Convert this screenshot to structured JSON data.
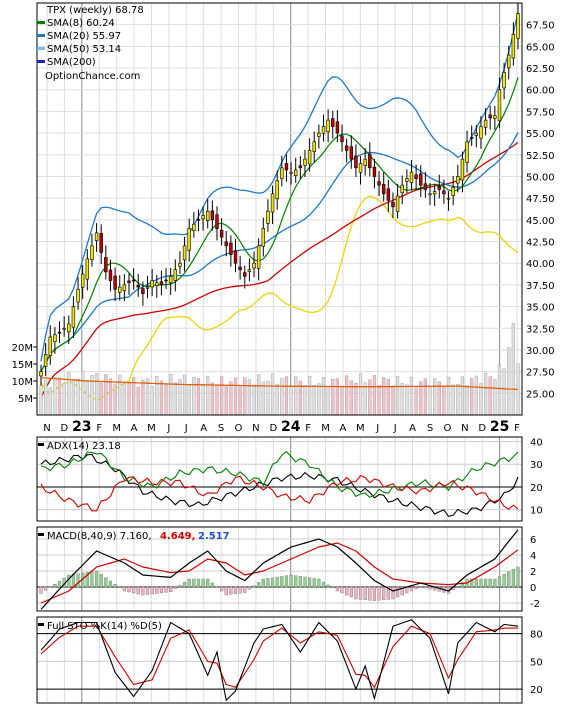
{
  "colors": {
    "up_candle": "#f2e600",
    "down_candle": "#c00000",
    "sma8": "#008000",
    "sma20": "#1e78c8",
    "sma50": "#7db9e6",
    "sma200": "#2020c0",
    "red_line": "#cc0000",
    "bollinger_upper": "#1e78c8",
    "bollinger_lower": "#e6d800",
    "volume_up": "#e0e0e0",
    "volume_down": "#f5c0c8",
    "volume_avg": "#e06010",
    "adx": "#000000",
    "plus_di": "#008000",
    "minus_di": "#cc0000",
    "macd_line": "#000000",
    "signal_line": "#cc0000",
    "hist_pos": "#90d090",
    "hist_neg": "#f0b0c0",
    "stoch_k": "#000000",
    "stoch_d": "#cc0000"
  },
  "legend": {
    "title": "TPX (weekly) 68.78",
    "sma8": "SMA(8) 60.24",
    "sma20": "SMA(20) 55.97",
    "sma50": "SMA(50) 53.14",
    "sma200": "SMA(200)",
    "site": "OptionChance.com"
  },
  "x_axis": {
    "months": [
      "N",
      "D",
      "23",
      "F",
      "M",
      "A",
      "M",
      "J",
      "J",
      "A",
      "S",
      "O",
      "N",
      "D",
      "24",
      "F",
      "M",
      "A",
      "M",
      "J",
      "J",
      "A",
      "S",
      "O",
      "N",
      "D",
      "25",
      "F"
    ],
    "year_labels": [
      "23",
      "24",
      "25"
    ]
  },
  "chart_data": [
    {
      "type": "candlestick",
      "title": "TPX (weekly) 68.78",
      "ylim": [
        22.5,
        70
      ],
      "y_ticks": [
        "25.00",
        "27.50",
        "30.00",
        "32.50",
        "35.00",
        "37.50",
        "40.00",
        "42.50",
        "45.00",
        "47.50",
        "50.00",
        "52.50",
        "55.00",
        "57.50",
        "60.00",
        "62.50",
        "65.00",
        "67.50"
      ],
      "close_anchors": [
        [
          0,
          27.5
        ],
        [
          2,
          31.5
        ],
        [
          4,
          32
        ],
        [
          6,
          33
        ],
        [
          8,
          37
        ],
        [
          10,
          40.5
        ],
        [
          12,
          43.5
        ],
        [
          14,
          39
        ],
        [
          16,
          37
        ],
        [
          18,
          37.5
        ],
        [
          20,
          38
        ],
        [
          22,
          36.5
        ],
        [
          24,
          38
        ],
        [
          26,
          37.5
        ],
        [
          28,
          38.5
        ],
        [
          30,
          40
        ],
        [
          32,
          44
        ],
        [
          34,
          45
        ],
        [
          36,
          46
        ],
        [
          38,
          44
        ],
        [
          40,
          42
        ],
        [
          42,
          40
        ],
        [
          44,
          38.5
        ],
        [
          46,
          40
        ],
        [
          48,
          44
        ],
        [
          50,
          48
        ],
        [
          52,
          51
        ],
        [
          54,
          50.5
        ],
        [
          56,
          51
        ],
        [
          58,
          53
        ],
        [
          60,
          55
        ],
        [
          62,
          56.5
        ],
        [
          64,
          55
        ],
        [
          66,
          53
        ],
        [
          68,
          51
        ],
        [
          70,
          52
        ],
        [
          72,
          50
        ],
        [
          74,
          48
        ],
        [
          76,
          46.5
        ],
        [
          78,
          49
        ],
        [
          80,
          50.5
        ],
        [
          82,
          49
        ],
        [
          84,
          48
        ],
        [
          86,
          48.5
        ],
        [
          88,
          47.5
        ],
        [
          90,
          50
        ],
        [
          92,
          54
        ],
        [
          94,
          55
        ],
        [
          96,
          56.5
        ],
        [
          98,
          57
        ],
        [
          99,
          60
        ],
        [
          101,
          64
        ],
        [
          103,
          68.78
        ]
      ],
      "volume_ylim": [
        0,
        25
      ],
      "volume_ticks": [
        "5M",
        "10M",
        "15M",
        "20M"
      ],
      "volume_anchors": [
        [
          0,
          7
        ],
        [
          4,
          9
        ],
        [
          10,
          10
        ],
        [
          20,
          8
        ],
        [
          30,
          9
        ],
        [
          40,
          8
        ],
        [
          50,
          9
        ],
        [
          60,
          8
        ],
        [
          70,
          9
        ],
        [
          80,
          8
        ],
        [
          90,
          8
        ],
        [
          98,
          10
        ],
        [
          100,
          13
        ],
        [
          102,
          24
        ],
        [
          103,
          15
        ]
      ],
      "volume_avg_anchors": [
        [
          0,
          11
        ],
        [
          10,
          10
        ],
        [
          30,
          9
        ],
        [
          50,
          8.5
        ],
        [
          70,
          8.3
        ],
        [
          90,
          8.5
        ],
        [
          103,
          7.5
        ]
      ],
      "series": [
        {
          "name": "SMA(8) 60.24"
        },
        {
          "name": "SMA(20) 55.97"
        },
        {
          "name": "SMA(50) 53.14"
        },
        {
          "name": "SMA(200)"
        }
      ]
    },
    {
      "type": "line",
      "title": "ADX(14) 23.18",
      "ylim": [
        5,
        42
      ],
      "y_ticks": [
        "10",
        "20",
        "30",
        "40"
      ],
      "series": [
        {
          "name": "ADX(14) 23.18",
          "anchors": [
            [
              0,
              30
            ],
            [
              10,
              34
            ],
            [
              16,
              28
            ],
            [
              22,
              18
            ],
            [
              28,
              14
            ],
            [
              34,
              12
            ],
            [
              40,
              16
            ],
            [
              46,
              20
            ],
            [
              52,
              24
            ],
            [
              58,
              25
            ],
            [
              64,
              23
            ],
            [
              70,
              18
            ],
            [
              76,
              14
            ],
            [
              82,
              11
            ],
            [
              88,
              8
            ],
            [
              94,
              10
            ],
            [
              100,
              16
            ],
            [
              103,
              23.18
            ]
          ]
        },
        {
          "anchors": [
            [
              0,
              28
            ],
            [
              6,
              30
            ],
            [
              12,
              36
            ],
            [
              18,
              24
            ],
            [
              24,
              20
            ],
            [
              30,
              26
            ],
            [
              36,
              28
            ],
            [
              42,
              26
            ],
            [
              48,
              22
            ],
            [
              52,
              35
            ],
            [
              58,
              30
            ],
            [
              64,
              20
            ],
            [
              70,
              16
            ],
            [
              76,
              19
            ],
            [
              82,
              22
            ],
            [
              88,
              20
            ],
            [
              94,
              28
            ],
            [
              100,
              32
            ],
            [
              103,
              34
            ]
          ]
        },
        {
          "anchors": [
            [
              0,
              20
            ],
            [
              6,
              14
            ],
            [
              12,
              10
            ],
            [
              18,
              24
            ],
            [
              24,
              22
            ],
            [
              30,
              22
            ],
            [
              36,
              16
            ],
            [
              42,
              24
            ],
            [
              48,
              20
            ],
            [
              52,
              16
            ],
            [
              58,
              14
            ],
            [
              64,
              22
            ],
            [
              70,
              24
            ],
            [
              76,
              20
            ],
            [
              82,
              18
            ],
            [
              88,
              22
            ],
            [
              94,
              18
            ],
            [
              100,
              12
            ],
            [
              103,
              10
            ]
          ]
        }
      ],
      "reference": 20
    },
    {
      "type": "line",
      "title": "MACD(8,40,9) 7.160,",
      "values_printed": [
        "4.649,",
        "2.517"
      ],
      "ylim": [
        -3,
        7.5
      ],
      "y_ticks": [
        "-2",
        "0",
        "2",
        "4",
        "6"
      ],
      "series": [
        {
          "name": "MACD(8,40,9) 7.160,",
          "anchors": [
            [
              0,
              -2.8
            ],
            [
              6,
              1
            ],
            [
              12,
              4.5
            ],
            [
              18,
              3
            ],
            [
              22,
              1.5
            ],
            [
              28,
              1.2
            ],
            [
              32,
              3
            ],
            [
              36,
              4.5
            ],
            [
              40,
              2
            ],
            [
              44,
              0.8
            ],
            [
              48,
              3
            ],
            [
              54,
              5
            ],
            [
              60,
              6
            ],
            [
              64,
              5
            ],
            [
              68,
              3
            ],
            [
              72,
              0.8
            ],
            [
              76,
              -0.5
            ],
            [
              82,
              0.5
            ],
            [
              88,
              -0.5
            ],
            [
              92,
              1.5
            ],
            [
              98,
              3.5
            ],
            [
              103,
              7.16
            ]
          ]
        },
        {
          "name": "4.649,",
          "anchors": [
            [
              0,
              -2
            ],
            [
              6,
              -0.5
            ],
            [
              12,
              2.5
            ],
            [
              18,
              3.5
            ],
            [
              22,
              2.5
            ],
            [
              28,
              1.8
            ],
            [
              32,
              2
            ],
            [
              36,
              3.5
            ],
            [
              40,
              3
            ],
            [
              44,
              1.5
            ],
            [
              48,
              2
            ],
            [
              54,
              3.5
            ],
            [
              60,
              5
            ],
            [
              64,
              5.5
            ],
            [
              68,
              4.5
            ],
            [
              72,
              2.5
            ],
            [
              76,
              1
            ],
            [
              82,
              0.5
            ],
            [
              88,
              0.3
            ],
            [
              92,
              0.5
            ],
            [
              98,
              2.5
            ],
            [
              103,
              4.649
            ]
          ]
        },
        {
          "name": "2.517"
        }
      ]
    },
    {
      "type": "line",
      "title": "Full STO %K(14) %D(5)",
      "ylim": [
        5,
        98
      ],
      "y_ticks": [
        "20",
        "50",
        "80"
      ],
      "series": [
        {
          "name": "%K(14)",
          "anchors": [
            [
              0,
              62
            ],
            [
              4,
              85
            ],
            [
              8,
              92
            ],
            [
              12,
              92
            ],
            [
              16,
              38
            ],
            [
              20,
              12
            ],
            [
              24,
              40
            ],
            [
              28,
              92
            ],
            [
              32,
              80
            ],
            [
              36,
              35
            ],
            [
              38,
              60
            ],
            [
              40,
              8
            ],
            [
              42,
              18
            ],
            [
              46,
              70
            ],
            [
              48,
              85
            ],
            [
              52,
              90
            ],
            [
              56,
              60
            ],
            [
              60,
              92
            ],
            [
              64,
              72
            ],
            [
              68,
              20
            ],
            [
              70,
              45
            ],
            [
              72,
              10
            ],
            [
              76,
              88
            ],
            [
              80,
              95
            ],
            [
              84,
              75
            ],
            [
              88,
              15
            ],
            [
              90,
              70
            ],
            [
              94,
              92
            ],
            [
              98,
              82
            ],
            [
              100,
              90
            ],
            [
              103,
              88
            ]
          ]
        },
        {
          "name": "%D(5)",
          "anchors": [
            [
              0,
              58
            ],
            [
              4,
              76
            ],
            [
              8,
              88
            ],
            [
              12,
              88
            ],
            [
              16,
              55
            ],
            [
              20,
              25
            ],
            [
              24,
              30
            ],
            [
              28,
              75
            ],
            [
              32,
              84
            ],
            [
              36,
              50
            ],
            [
              38,
              48
            ],
            [
              40,
              25
            ],
            [
              42,
              22
            ],
            [
              46,
              52
            ],
            [
              48,
              72
            ],
            [
              52,
              86
            ],
            [
              56,
              70
            ],
            [
              60,
              82
            ],
            [
              64,
              78
            ],
            [
              68,
              36
            ],
            [
              70,
              35
            ],
            [
              72,
              22
            ],
            [
              76,
              66
            ],
            [
              80,
              88
            ],
            [
              84,
              80
            ],
            [
              88,
              32
            ],
            [
              90,
              52
            ],
            [
              94,
              82
            ],
            [
              98,
              84
            ],
            [
              100,
              86
            ],
            [
              103,
              86
            ]
          ]
        }
      ],
      "reference": [
        20,
        80
      ]
    }
  ]
}
